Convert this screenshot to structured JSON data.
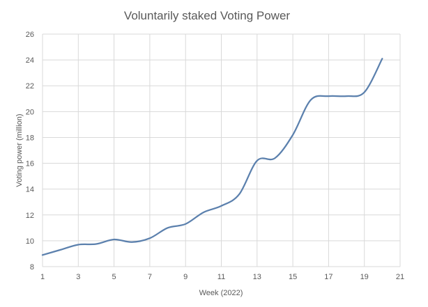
{
  "chart_data": {
    "type": "line",
    "title": "Voluntarily staked Voting Power",
    "xlabel": "Week (2022)",
    "ylabel": "Voting power (million)",
    "xlim": [
      1,
      21
    ],
    "ylim": [
      8,
      26
    ],
    "xticks": [
      1,
      3,
      5,
      7,
      9,
      11,
      13,
      15,
      17,
      19,
      21
    ],
    "yticks": [
      8,
      10,
      12,
      14,
      16,
      18,
      20,
      22,
      24,
      26
    ],
    "grid": true,
    "series": [
      {
        "name": "Voting power",
        "color": "#5b80ad",
        "x": [
          1,
          2,
          3,
          4,
          5,
          6,
          7,
          8,
          9,
          10,
          11,
          12,
          13,
          14,
          15,
          16,
          17,
          18,
          19,
          20
        ],
        "values": [
          8.9,
          9.3,
          9.7,
          9.75,
          10.1,
          9.9,
          10.2,
          11.0,
          11.3,
          12.2,
          12.7,
          13.6,
          16.2,
          16.4,
          18.2,
          20.9,
          21.2,
          21.2,
          21.5,
          24.1
        ]
      }
    ]
  }
}
